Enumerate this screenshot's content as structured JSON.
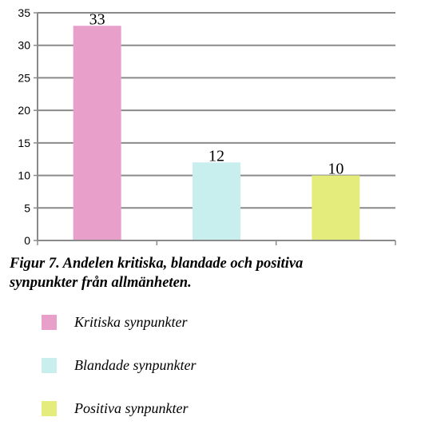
{
  "chart_data": {
    "type": "bar",
    "categories": [
      "Kritiska synpunkter",
      "Blandade synpunkter",
      "Positiva synpunkter"
    ],
    "values": [
      33,
      12,
      10
    ],
    "colors": [
      "#e8a0cb",
      "#c8eeee",
      "#e4ec7c"
    ],
    "ylim": [
      0,
      35
    ],
    "yticks": [
      0,
      5,
      10,
      15,
      20,
      25,
      30,
      35
    ],
    "grid": true,
    "data_labels": true
  },
  "caption": {
    "line1": "Figur 7. Andelen kritiska, blandade och positiva",
    "line2": "synpunkter från allmänheten."
  },
  "legend": {
    "items": [
      {
        "label": "Kritiska synpunkter",
        "color": "#e8a0cb"
      },
      {
        "label": "Blandade synpunkter",
        "color": "#c8eeee"
      },
      {
        "label": "Positiva synpunkter",
        "color": "#e4ec7c"
      }
    ]
  }
}
